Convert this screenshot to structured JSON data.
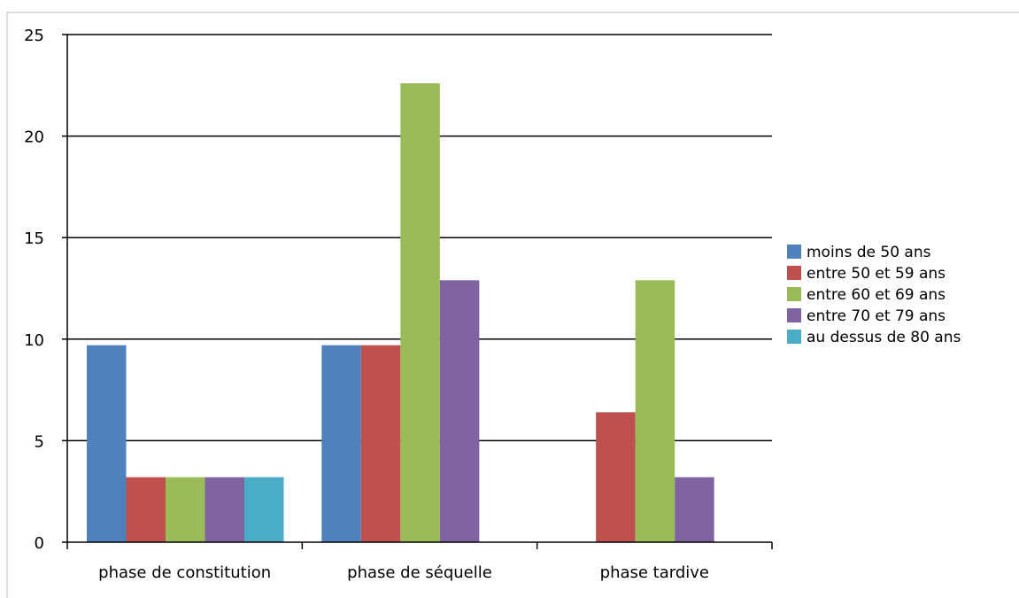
{
  "chart_data": {
    "type": "bar",
    "title": "",
    "xlabel": "",
    "ylabel": "",
    "ylim": [
      0,
      25
    ],
    "yticks": [
      0,
      5,
      10,
      15,
      20,
      25
    ],
    "grid": true,
    "legend_position": "right",
    "categories": [
      "phase de constitution",
      "phase de séquelle",
      "phase tardive"
    ],
    "series": [
      {
        "name": "moins de 50 ans",
        "color": "#4f81bd",
        "values": [
          9.7,
          9.7,
          0
        ]
      },
      {
        "name": "entre 50 et 59 ans",
        "color": "#c0504d",
        "values": [
          3.2,
          9.7,
          6.4
        ]
      },
      {
        "name": "entre 60 et 69 ans",
        "color": "#9bbb59",
        "values": [
          3.2,
          22.6,
          12.9
        ]
      },
      {
        "name": "entre 70 et 79 ans",
        "color": "#8064a2",
        "values": [
          3.2,
          12.9,
          3.2
        ]
      },
      {
        "name": "au dessus de 80 ans",
        "color": "#4bacc6",
        "values": [
          3.2,
          0,
          0
        ]
      }
    ]
  }
}
